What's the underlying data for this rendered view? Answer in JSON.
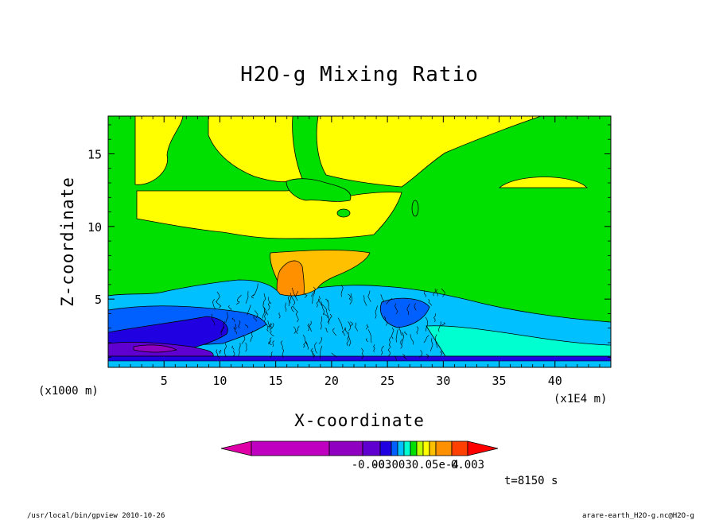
{
  "chart_data": {
    "type": "heatmap",
    "title": "H2O-g Mixing Ratio",
    "xlabel": "X-coordinate",
    "ylabel": "Z-coordinate",
    "x_unit_left": "(x1000 m)",
    "x_unit_right": "(x1E4 m)",
    "xlim": [
      0,
      45
    ],
    "ylim": [
      0.3,
      17.6
    ],
    "x_ticks": [
      "5",
      "10",
      "15",
      "20",
      "25",
      "30",
      "35",
      "40"
    ],
    "y_ticks": [
      "5",
      "10",
      "15"
    ],
    "colorbar": {
      "colors": [
        "#e000a8",
        "#c000c0",
        "#9000c0",
        "#6000d0",
        "#2000e0",
        "#0060ff",
        "#00c0ff",
        "#00ffd0",
        "#00e000",
        "#c0ff00",
        "#ffff00",
        "#ffc000",
        "#ff9000",
        "#ff4000",
        "#ff0000"
      ],
      "labels": [
        "-0.003",
        "-0.0030.05e-4",
        "0.003"
      ]
    },
    "time_label": "t=8150 s",
    "footer_left": "/usr/local/bin/gpview  2010-10-26",
    "footer_right": "arare-earth_H2O-g.nc@H2O-g"
  }
}
